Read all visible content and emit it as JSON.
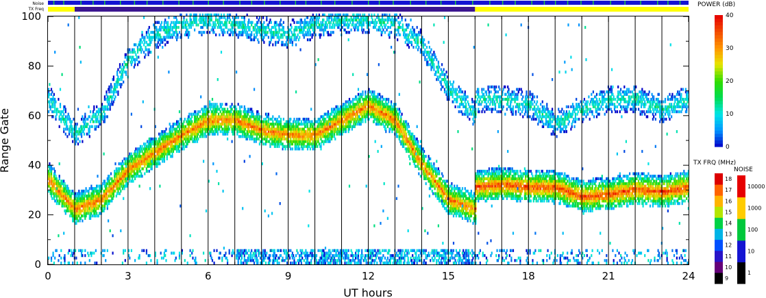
{
  "chart_data": {
    "type": "heatmap",
    "title": "",
    "xlabel": "UT hours",
    "ylabel": "Range Gate",
    "xlim": [
      0,
      24
    ],
    "ylim": [
      0,
      100
    ],
    "x_ticks": [
      "0",
      "3",
      "6",
      "9",
      "12",
      "15",
      "18",
      "21",
      "24"
    ],
    "y_ticks": [
      "0",
      "20",
      "40",
      "60",
      "80",
      "100"
    ],
    "scan_boundaries_ut": [
      1,
      2,
      3,
      4,
      5,
      6,
      7,
      8,
      9,
      10,
      11,
      12,
      13,
      14,
      15,
      16,
      17,
      18,
      19,
      20,
      21,
      22,
      23
    ],
    "echo_bands": [
      {
        "t": [
          0,
          1,
          2,
          3,
          4,
          5,
          6,
          7,
          8,
          9,
          10,
          11,
          12,
          13,
          14,
          15,
          16
        ],
        "gate": [
          34,
          22,
          26,
          38,
          45,
          52,
          58,
          58,
          54,
          52,
          52,
          58,
          64,
          58,
          40,
          26,
          22
        ],
        "peak_db": 30
      },
      {
        "t": [
          16,
          17,
          18,
          19,
          20,
          21,
          22,
          23,
          24
        ],
        "gate": [
          31,
          32,
          31,
          31,
          27,
          28,
          30,
          29,
          31
        ],
        "peak_db": 33
      },
      {
        "t": [
          0,
          1,
          2,
          3,
          4,
          5,
          6,
          7,
          8,
          9,
          10,
          11,
          12,
          13,
          14,
          15,
          16
        ],
        "gate": [
          66,
          52,
          60,
          82,
          92,
          96,
          98,
          96,
          94,
          92,
          96,
          98,
          98,
          96,
          88,
          70,
          60
        ],
        "peak_db": 12
      },
      {
        "t": [
          16,
          17,
          18,
          19,
          20,
          21,
          22,
          23,
          24
        ],
        "gate": [
          66,
          66,
          64,
          56,
          62,
          66,
          66,
          62,
          66
        ],
        "peak_db": 12
      }
    ],
    "ground_band": {
      "gate": [
        0,
        5
      ],
      "peak_db": 12
    },
    "power_scale": {
      "label": "POWER (dB)",
      "ticks": [
        "0",
        "10",
        "20",
        "30",
        "40"
      ]
    },
    "txfreq_scale": {
      "label": "TX FRQ (MHz)",
      "ticks": [
        "9",
        "10",
        "11",
        "12",
        "13",
        "14",
        "15",
        "16",
        "17",
        "18"
      ]
    },
    "noise_scale": {
      "label": "NOISE",
      "ticks": [
        "1",
        "10",
        "100",
        "1000",
        "10000"
      ]
    },
    "status_bars": {
      "noise_label": "Noise",
      "txfreq_label": "TX Freq",
      "txfreq_segments": [
        {
          "from": 0,
          "to": 1,
          "color": "#ffff00"
        },
        {
          "from": 1,
          "to": 16,
          "color": "#3c1690"
        },
        {
          "from": 16,
          "to": 24,
          "color": "#ffff00"
        }
      ]
    }
  }
}
